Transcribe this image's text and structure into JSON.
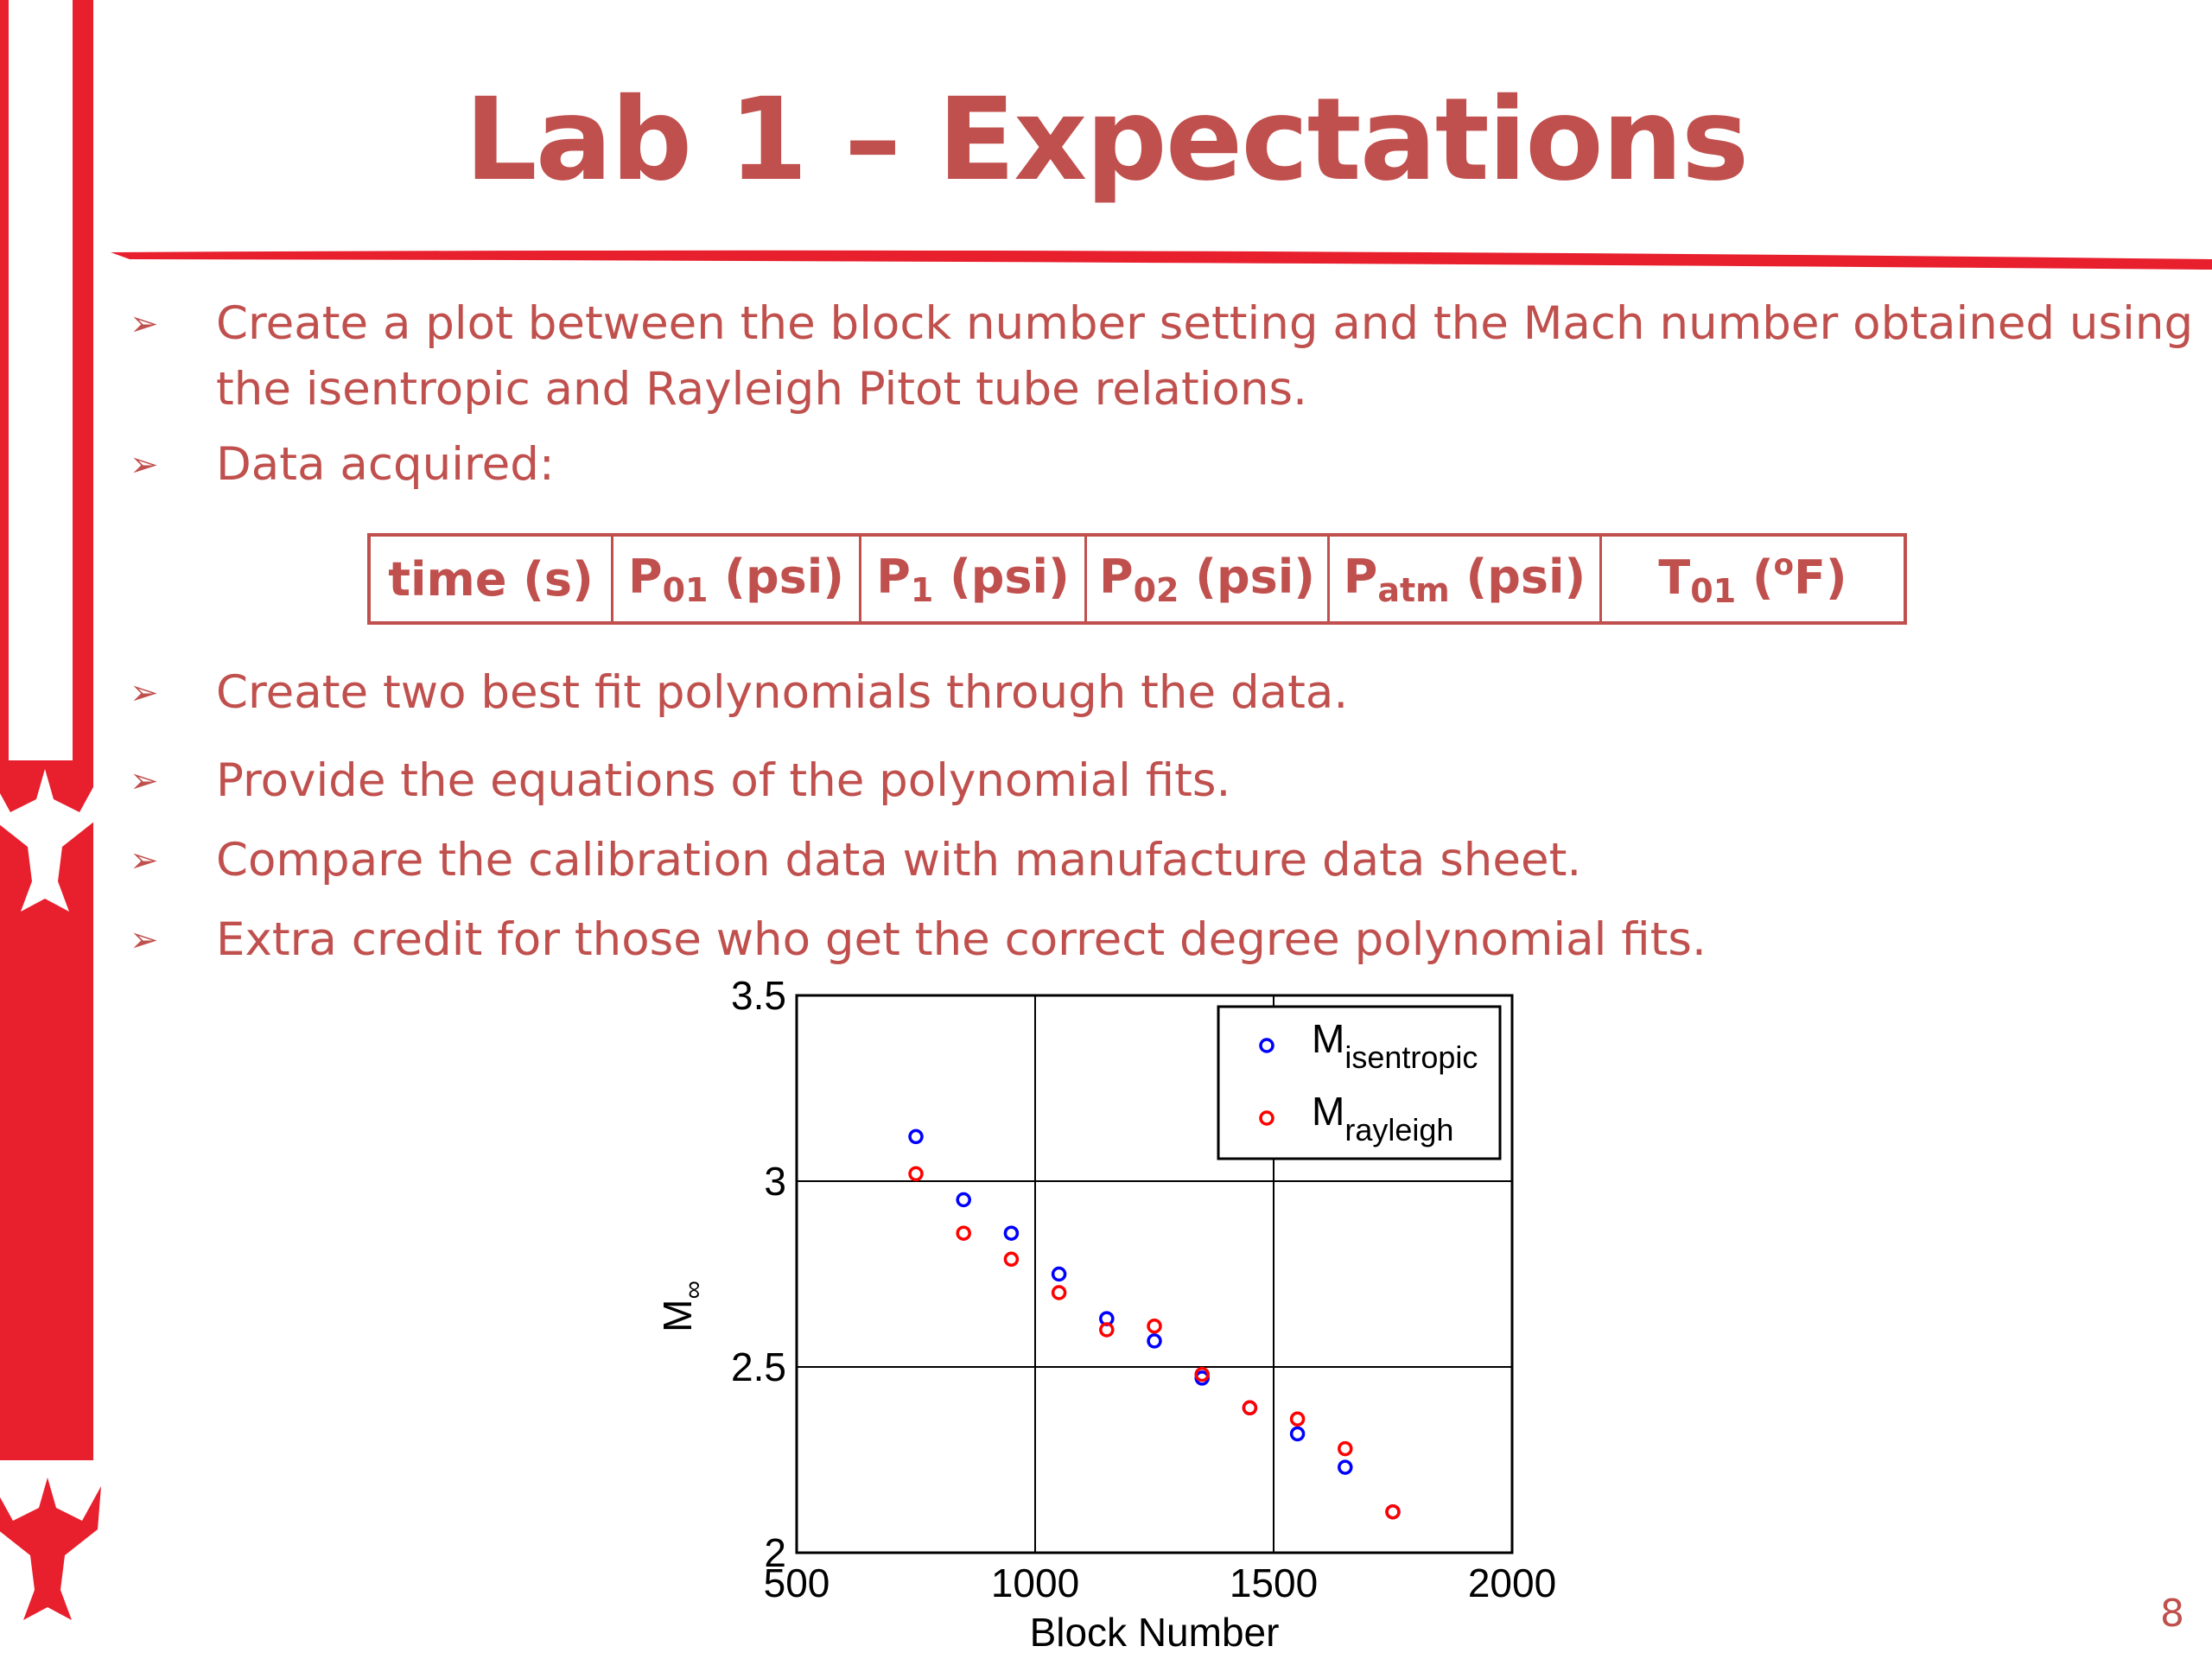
{
  "slide": {
    "title": "Lab 1 – Expectations",
    "page_number": "8",
    "bullets": [
      "Create a plot between the block number setting and the Mach number obtained using",
      "the isentropic and Rayleigh Pitot tube relations.",
      "Data acquired:",
      "Create two best fit polynomials through the data.",
      "Provide the equations of the polynomial fits.",
      "Compare the calibration data with manufacture data sheet.",
      "Extra credit for those who get the correct degree polynomial fits."
    ],
    "bullet_symbol": "➢",
    "table_headers": [
      {
        "base": "time (s)",
        "sub": "",
        "sup": "",
        "rest": ""
      },
      {
        "base": "P",
        "sub": "01",
        "sup": "",
        "rest": " (psi)"
      },
      {
        "base": "P",
        "sub": "1",
        "sup": "",
        "rest": " (psi)"
      },
      {
        "base": "P",
        "sub": "02",
        "sup": "",
        "rest": " (psi)"
      },
      {
        "base": "P",
        "sub": "atm",
        "sup": "",
        "rest": " (psi)"
      },
      {
        "base": "T",
        "sub": "01",
        "sup": "o",
        "rest": "F)",
        "mid": " ("
      }
    ],
    "colors": {
      "accent": "#c0504d",
      "bar": "#e8202e",
      "isentropic": "#0000ff",
      "rayleigh": "#ff0000"
    }
  },
  "chart_data": {
    "type": "scatter",
    "xlabel": "Block Number",
    "ylabel_base": "M",
    "ylabel_sub": "∞",
    "xlim": [
      500,
      2000
    ],
    "ylim": [
      2,
      3.5
    ],
    "x_ticks": [
      500,
      1000,
      1500,
      2000
    ],
    "y_ticks": [
      2,
      2.5,
      3,
      3.5
    ],
    "x_tick_labels": [
      "500",
      "1000",
      "1500",
      "2000"
    ],
    "y_tick_labels": [
      "2",
      "2.5",
      "3",
      "3.5"
    ],
    "grid": true,
    "legend": "top-right",
    "series": [
      {
        "name_base": "M",
        "name_sub": "isentropic",
        "color": "#0000ff",
        "points": [
          [
            750,
            3.12
          ],
          [
            850,
            2.95
          ],
          [
            950,
            2.86
          ],
          [
            1050,
            2.75
          ],
          [
            1150,
            2.63
          ],
          [
            1250,
            2.57
          ],
          [
            1350,
            2.47
          ],
          [
            1450,
            2.39
          ],
          [
            1550,
            2.32
          ],
          [
            1650,
            2.23
          ],
          [
            1750,
            2.11
          ]
        ]
      },
      {
        "name_base": "M",
        "name_sub": "rayleigh",
        "color": "#ff0000",
        "points": [
          [
            750,
            3.02
          ],
          [
            850,
            2.86
          ],
          [
            950,
            2.79
          ],
          [
            1050,
            2.7
          ],
          [
            1150,
            2.6
          ],
          [
            1250,
            2.61
          ],
          [
            1350,
            2.48
          ],
          [
            1450,
            2.39
          ],
          [
            1550,
            2.36
          ],
          [
            1650,
            2.28
          ],
          [
            1750,
            2.11
          ]
        ]
      }
    ]
  }
}
